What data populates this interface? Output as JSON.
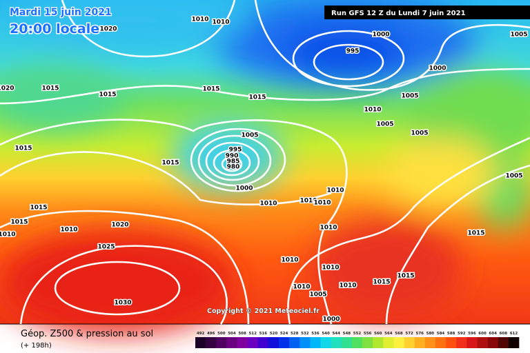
{
  "header": {
    "date": "Mardi 15 juin 2021",
    "time": "20:00 locale",
    "run": "Run GFS 12 Z du Lundi 7 juin 2021",
    "copyright": "Copyright © 2021 Meteociel.fr"
  },
  "footer": {
    "title": "Géop. Z500 & pression au sol",
    "lead": "(+ 198h)"
  },
  "isobar_labels": [
    1010,
    1010,
    1020,
    1000,
    1005,
    995,
    1000,
    1020,
    1015,
    1015,
    1015,
    1015,
    1005,
    1010,
    1005,
    1005,
    1005,
    995,
    990,
    985,
    980,
    1015,
    1015,
    1005,
    1000,
    1010,
    1010,
    1010,
    1010,
    1015,
    1015,
    1020,
    1010,
    1010,
    1010,
    1015,
    1025,
    1010,
    1010,
    1015,
    1015,
    1010,
    1010,
    1005,
    1030,
    1000
  ],
  "legend": {
    "items": [
      {
        "label": 492,
        "color": "#1c0028"
      },
      {
        "label": 496,
        "color": "#35003f"
      },
      {
        "label": 500,
        "color": "#500060"
      },
      {
        "label": 504,
        "color": "#6a0080"
      },
      {
        "label": 508,
        "color": "#8000a0"
      },
      {
        "label": 512,
        "color": "#6a00c0"
      },
      {
        "label": 516,
        "color": "#4000d0"
      },
      {
        "label": 520,
        "color": "#1010d8"
      },
      {
        "label": 524,
        "color": "#0030e8"
      },
      {
        "label": 528,
        "color": "#0060f0"
      },
      {
        "label": 532,
        "color": "#0090f8"
      },
      {
        "label": 536,
        "color": "#00b8f8"
      },
      {
        "label": 540,
        "color": "#10d8e8"
      },
      {
        "label": 544,
        "color": "#20e0c0"
      },
      {
        "label": 548,
        "color": "#30e090"
      },
      {
        "label": 552,
        "color": "#50e060"
      },
      {
        "label": 556,
        "color": "#80e040"
      },
      {
        "label": 560,
        "color": "#b0e830"
      },
      {
        "label": 564,
        "color": "#e0f030"
      },
      {
        "label": 568,
        "color": "#fff040"
      },
      {
        "label": 572,
        "color": "#ffd030"
      },
      {
        "label": 576,
        "color": "#ffb020"
      },
      {
        "label": 580,
        "color": "#ff9018"
      },
      {
        "label": 584,
        "color": "#ff7010"
      },
      {
        "label": 588,
        "color": "#ff5010"
      },
      {
        "label": 592,
        "color": "#f03018"
      },
      {
        "label": 596,
        "color": "#d81818"
      },
      {
        "label": 600,
        "color": "#b01010"
      },
      {
        "label": 604,
        "color": "#880808"
      },
      {
        "label": 608,
        "color": "#500404"
      },
      {
        "label": 612,
        "color": "#100000"
      }
    ]
  }
}
